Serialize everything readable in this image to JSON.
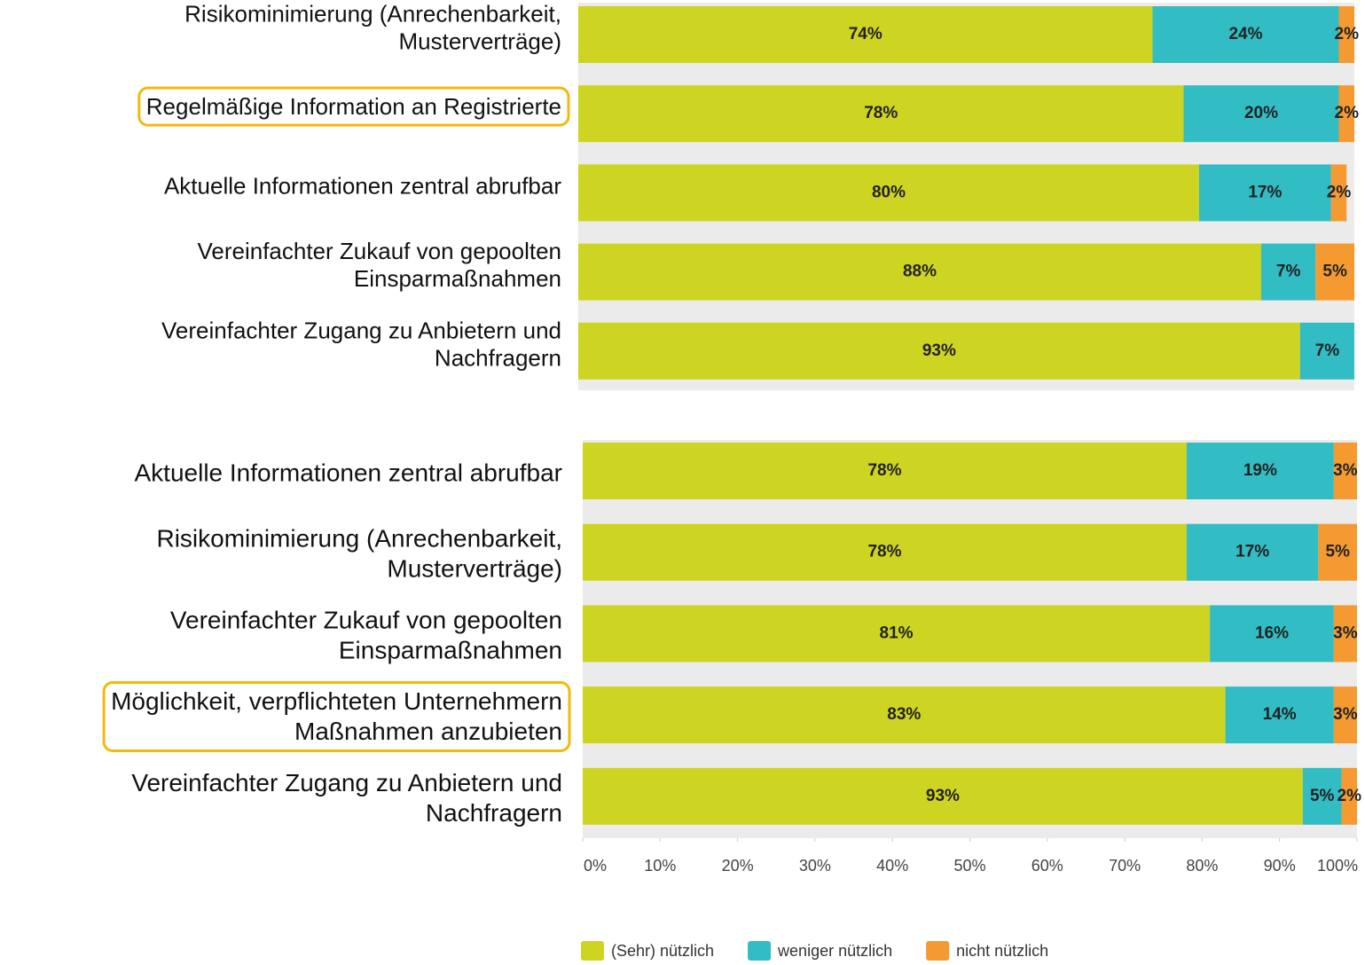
{
  "chart_data": [
    {
      "type": "stacked_barh",
      "categories": [
        "Risikominimierung (Anrechenbarkeit,\nMusterverträge)",
        "Regelmäßige Information an Registrierte",
        "Aktuelle Informationen zentral abrufbar",
        "Vereinfachter Zukauf von gepoolten\nEinsparmaßnahmen",
        "Vereinfachter Zugang zu Anbietern und\nNachfragern"
      ],
      "series": [
        {
          "color": "#cdd422",
          "values": [
            74,
            78,
            80,
            88,
            93
          ],
          "value_labels": [
            "74%",
            "78%",
            "80%",
            "88%",
            "93%"
          ]
        },
        {
          "color": "#32bcc4",
          "values": [
            24,
            20,
            17,
            7,
            7
          ],
          "value_labels": [
            "24%",
            "20%",
            "17%",
            "7%",
            "7%"
          ]
        },
        {
          "color": "#f49a30",
          "values": [
            2,
            2,
            2,
            5,
            null
          ],
          "value_labels": [
            "2%",
            "2%",
            "2%",
            "5%",
            null
          ]
        }
      ],
      "xlim": [
        0,
        100
      ],
      "highlight": [
        1
      ]
    },
    {
      "type": "stacked_barh",
      "categories": [
        "Aktuelle Informationen zentral abrufbar",
        "Risikominimierung (Anrechenbarkeit,\nMusterverträge)",
        "Vereinfachter Zukauf von gepoolten\nEinsparmaßnahmen",
        "Möglichkeit, verpflichteten Unternehmern\nMaßnahmen anzubieten",
        "Vereinfachter Zugang zu Anbietern und\nNachfragern"
      ],
      "series": [
        {
          "name": "(Sehr) nützlich",
          "color": "#cdd422",
          "values": [
            78,
            78,
            81,
            83,
            93
          ],
          "value_labels": [
            "78%",
            "78%",
            "81%",
            "83%",
            "93%"
          ]
        },
        {
          "name": "weniger nützlich",
          "color": "#32bcc4",
          "values": [
            19,
            17,
            16,
            14,
            5
          ],
          "value_labels": [
            "19%",
            "17%",
            "16%",
            "14%",
            "5%"
          ]
        },
        {
          "name": "nicht nützlich",
          "color": "#f49a30",
          "values": [
            3,
            5,
            3,
            3,
            2
          ],
          "value_labels": [
            "3%",
            "5%",
            "3%",
            "3%",
            "2%"
          ]
        }
      ],
      "xlim": [
        0,
        100
      ],
      "xticks": [
        {
          "value": 0,
          "label": "0%"
        },
        {
          "value": 10,
          "label": "10%"
        },
        {
          "value": 20,
          "label": "20%"
        },
        {
          "value": 30,
          "label": "30%"
        },
        {
          "value": 40,
          "label": "40%"
        },
        {
          "value": 50,
          "label": "50%"
        },
        {
          "value": 60,
          "label": "60%"
        },
        {
          "value": 70,
          "label": "70%"
        },
        {
          "value": 80,
          "label": "80%"
        },
        {
          "value": 90,
          "label": "90%"
        },
        {
          "value": 100,
          "label": "100%"
        }
      ],
      "highlight": [
        3
      ]
    }
  ]
}
